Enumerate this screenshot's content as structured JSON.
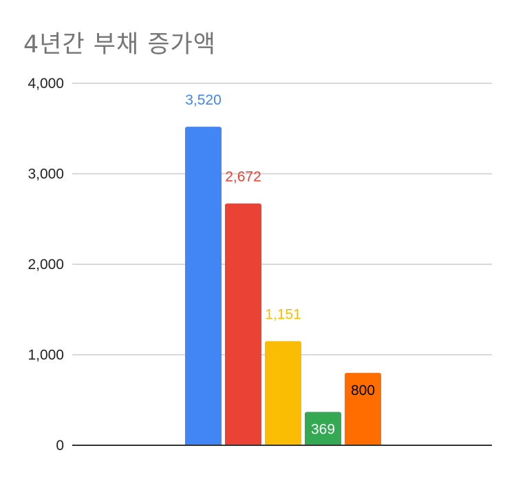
{
  "chart_data": {
    "type": "bar",
    "title": "4년간 부채 증가액",
    "xlabel": "",
    "ylabel": "",
    "ylim": [
      0,
      4000
    ],
    "yticks": [
      0,
      1000,
      2000,
      3000,
      4000
    ],
    "ytick_labels": [
      "0",
      "1,000",
      "2,000",
      "3,000",
      "4,000"
    ],
    "grid": true,
    "legend": "none",
    "series": [
      {
        "values": [
          3520
        ],
        "value_label": "3,520",
        "color": "#4285f4",
        "label_color": "#4285f4",
        "label_position": "above"
      },
      {
        "values": [
          2672
        ],
        "value_label": "2,672",
        "color": "#ea4335",
        "label_color": "#ea4335",
        "label_position": "above"
      },
      {
        "values": [
          1151
        ],
        "value_label": "1,151",
        "color": "#fbbc04",
        "label_color": "#fbbc04",
        "label_position": "above"
      },
      {
        "values": [
          369
        ],
        "value_label": "369",
        "color": "#34a853",
        "label_color": "#ffffff",
        "label_position": "inside"
      },
      {
        "values": [
          800
        ],
        "value_label": "800",
        "color": "#ff6d01",
        "label_color": "#000000",
        "label_position": "inside"
      }
    ]
  }
}
